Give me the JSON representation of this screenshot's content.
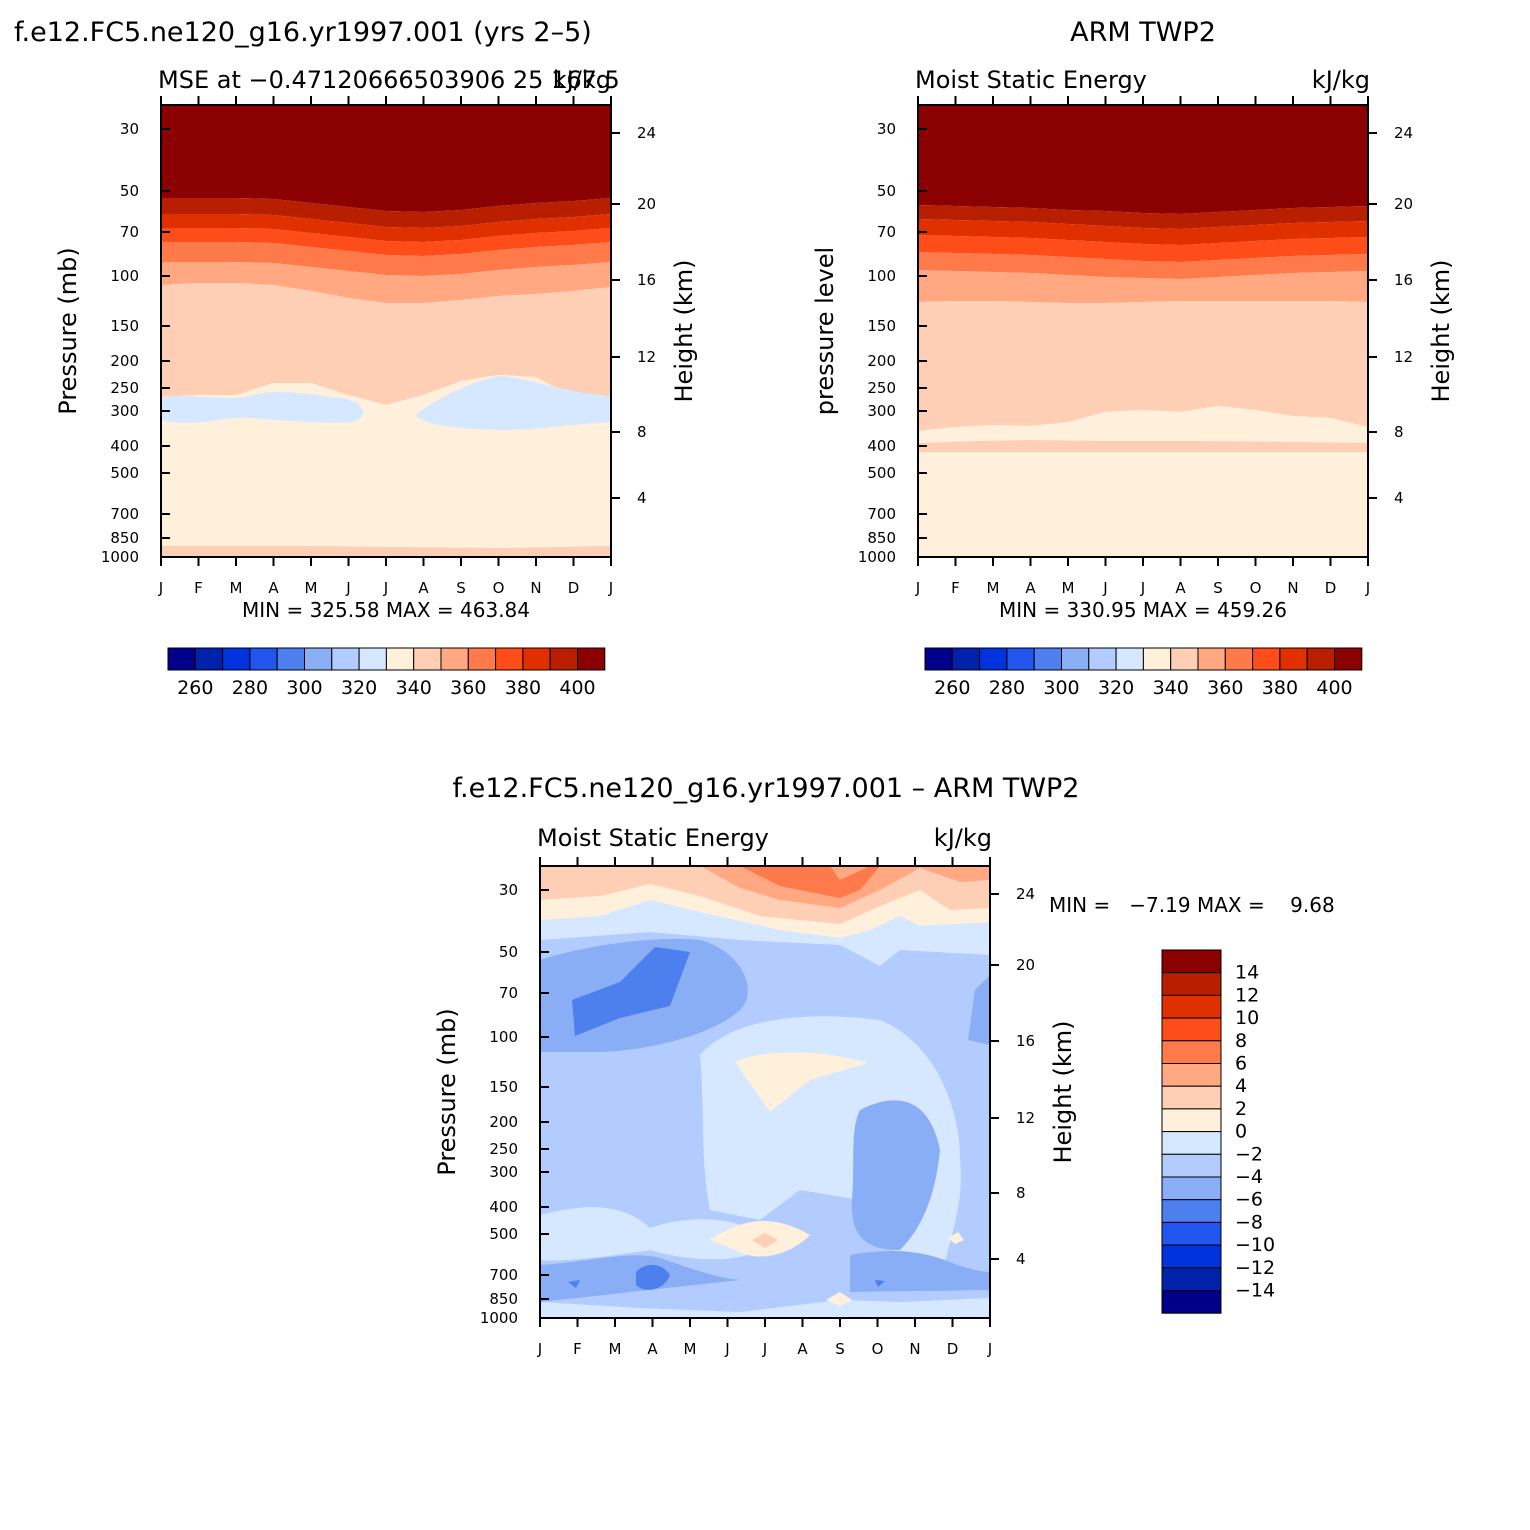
{
  "palette": [
    "#00008b",
    "#0022aa",
    "#0033dd",
    "#2255ee",
    "#4d7fef",
    "#8aaef5",
    "#b3ccff",
    "#d6e8ff",
    "#fff0dc",
    "#ffcfb5",
    "#ffa882",
    "#ff7a4a",
    "#ff4d1a",
    "#e03000",
    "#b81e00",
    "#8b0000"
  ],
  "months": [
    "J",
    "F",
    "M",
    "A",
    "M",
    "J",
    "J",
    "A",
    "S",
    "O",
    "N",
    "D",
    "J"
  ],
  "pressure_ticks": [
    "30",
    "50",
    "70",
    "100",
    "150",
    "200",
    "250",
    "300",
    "400",
    "500",
    "700",
    "850",
    "1000"
  ],
  "panels": {
    "model": {
      "title": "f.e12.FC5.ne120_g16.yr1997.001 (yrs 2–5)",
      "subtitle_left": "MSE at −0.47120666503906 25 167.5",
      "subtitle_right": "kJ/kg",
      "y_label": "Pressure (mb)",
      "y2_label": "Height (km)",
      "minmax": "MIN = 325.58 MAX = 463.84",
      "height_ticks": [
        "24",
        "20",
        "16",
        "12",
        "8",
        "4"
      ]
    },
    "obs": {
      "title": "ARM TWP2",
      "subtitle_left": "Moist Static Energy",
      "subtitle_right": "kJ/kg",
      "y_label": "pressure level",
      "y2_label": "Height (km)",
      "minmax": "MIN = 330.95 MAX = 459.26",
      "height_ticks": [
        "24",
        "20",
        "16",
        "12",
        "8",
        "4"
      ]
    },
    "diff": {
      "title": "f.e12.FC5.ne120_g16.yr1997.001 – ARM TWP2",
      "subtitle_left": "Moist Static Energy",
      "subtitle_right": "kJ/kg",
      "y_label": "Pressure (mb)",
      "y2_label": "Height (km)",
      "minmax": "MIN =   −7.19 MAX =    9.68",
      "height_ticks": [
        "24",
        "20",
        "16",
        "12",
        "8",
        "4"
      ]
    }
  },
  "colorbar_top": {
    "labels": [
      "260",
      "280",
      "300",
      "320",
      "340",
      "360",
      "380",
      "400"
    ]
  },
  "colorbar_diff": {
    "labels": [
      "14",
      "12",
      "10",
      "8",
      "6",
      "4",
      "2",
      "0",
      "−2",
      "−4",
      "−6",
      "−8",
      "−10",
      "−12",
      "−14"
    ]
  },
  "chart_data": [
    {
      "type": "heatmap",
      "title": "f.e12.FC5.ne120_g16.yr1997.001 (yrs 2–5)",
      "subtitle": "MSE at −0.47120666503906 25 167.5",
      "units": "kJ/kg",
      "xlabel": "",
      "ylabel": "Pressure (mb)",
      "y2label": "Height (km)",
      "x": [
        "J",
        "F",
        "M",
        "A",
        "M",
        "J",
        "J",
        "A",
        "S",
        "O",
        "N",
        "D",
        "J"
      ],
      "y_pressure_mb": [
        30,
        50,
        70,
        100,
        150,
        200,
        250,
        300,
        400,
        500,
        700,
        850,
        1000
      ],
      "contour_levels": [
        250,
        260,
        270,
        280,
        290,
        300,
        310,
        320,
        330,
        340,
        350,
        360,
        370,
        380,
        390,
        400
      ],
      "min": 325.58,
      "max": 463.84
    },
    {
      "type": "heatmap",
      "title": "ARM TWP2",
      "subtitle": "Moist Static Energy",
      "units": "kJ/kg",
      "ylabel": "pressure level",
      "y2label": "Height (km)",
      "x": [
        "J",
        "F",
        "M",
        "A",
        "M",
        "J",
        "J",
        "A",
        "S",
        "O",
        "N",
        "D",
        "J"
      ],
      "y_pressure_mb": [
        30,
        50,
        70,
        100,
        150,
        200,
        250,
        300,
        400,
        500,
        700,
        850,
        1000
      ],
      "contour_levels": [
        250,
        260,
        270,
        280,
        290,
        300,
        310,
        320,
        330,
        340,
        350,
        360,
        370,
        380,
        390,
        400
      ],
      "min": 330.95,
      "max": 459.26
    },
    {
      "type": "heatmap",
      "title": "f.e12.FC5.ne120_g16.yr1997.001 – ARM TWP2",
      "subtitle": "Moist Static Energy",
      "units": "kJ/kg",
      "ylabel": "Pressure (mb)",
      "y2label": "Height (km)",
      "x": [
        "J",
        "F",
        "M",
        "A",
        "M",
        "J",
        "J",
        "A",
        "S",
        "O",
        "N",
        "D",
        "J"
      ],
      "y_pressure_mb": [
        30,
        50,
        70,
        100,
        150,
        200,
        250,
        300,
        400,
        500,
        700,
        850,
        1000
      ],
      "contour_levels": [
        -14,
        -12,
        -10,
        -8,
        -6,
        -4,
        -2,
        0,
        2,
        4,
        6,
        8,
        10,
        12,
        14
      ],
      "min": -7.19,
      "max": 9.68
    }
  ]
}
